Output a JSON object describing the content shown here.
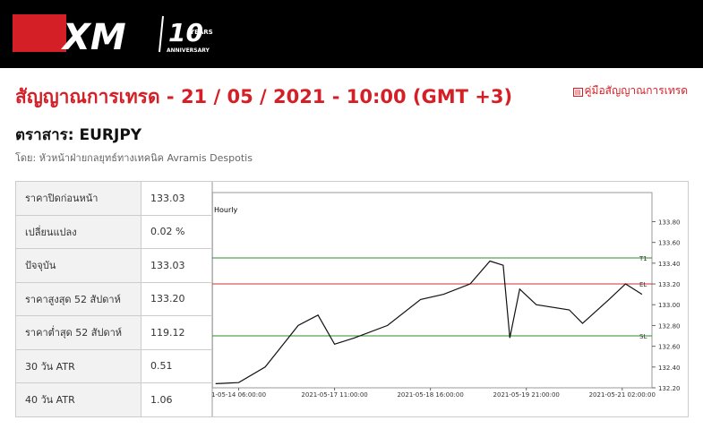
{
  "header": {
    "logo": "XM",
    "anniversary_number": "10",
    "anniversary_years": "YEARS",
    "anniversary_text": "ANNIVERSARY"
  },
  "title": "สัญญาณการเทรด - 21 / 05 / 2021 - 10:00 (GMT +3)",
  "guide_link": "คู่มือสัญญาณการเทรด",
  "instrument": "ตราสาร: EURJPY",
  "author": "โดย: หัวหน้าฝ่ายกลยุทธ์ทางเทคนิค Avramis Despotis",
  "table": {
    "rows": [
      [
        "ราคาปิดก่อนหน้า",
        "133.03"
      ],
      [
        "เปลี่ยนแปลง",
        "0.02 %"
      ],
      [
        "ปัจจุบัน",
        "133.03"
      ],
      [
        "ราคาสูงสุด 52 สัปดาห์",
        "133.20"
      ],
      [
        "ราคาต่ำสุด 52 สัปดาห์",
        "119.12"
      ],
      [
        "30 วัน ATR",
        "0.51"
      ],
      [
        "40 วัน ATR",
        "1.06"
      ]
    ]
  },
  "chart_data": {
    "type": "line",
    "title": "Hourly",
    "color": "#111111",
    "x": [
      -7,
      0,
      8,
      18,
      24,
      29,
      35,
      45,
      55,
      62,
      70,
      76,
      80,
      82,
      85,
      90,
      100,
      104,
      112,
      117,
      122
    ],
    "values": [
      132.24,
      132.25,
      132.4,
      132.8,
      132.9,
      132.62,
      132.68,
      132.8,
      133.05,
      133.1,
      133.2,
      133.42,
      133.38,
      132.68,
      133.15,
      133.0,
      132.95,
      132.82,
      133.05,
      133.2,
      133.1
    ],
    "xlim": [
      -8,
      125
    ],
    "xticks": [
      {
        "value": 0,
        "label": "1-05-14 06:00:00"
      },
      {
        "value": 29,
        "label": "2021-05-17 11:00:00"
      },
      {
        "value": 58,
        "label": "2021-05-18 16:00:00"
      },
      {
        "value": 87,
        "label": "2021-05-19 21:00:00"
      },
      {
        "value": 116,
        "label": "2021-05-21 02:00:00"
      }
    ],
    "ylim": [
      132.2,
      134.08
    ],
    "yticks": [
      {
        "value": 132.2,
        "label": "132.20"
      },
      {
        "value": 132.4,
        "label": "132.40"
      },
      {
        "value": 132.6,
        "label": "132.60"
      },
      {
        "value": 132.8,
        "label": "132.80"
      },
      {
        "value": 133.0,
        "label": "133.00"
      },
      {
        "value": 133.2,
        "label": "133.20"
      },
      {
        "value": 133.4,
        "label": "133.40"
      },
      {
        "value": 133.6,
        "label": "133.60"
      },
      {
        "value": 133.8,
        "label": "133.80"
      }
    ],
    "levels": [
      {
        "label": "T1",
        "value": 133.45,
        "color": "#2e8b2e"
      },
      {
        "label": "EL",
        "value": 133.2,
        "color": "#d03030"
      },
      {
        "label": "SL",
        "value": 132.7,
        "color": "#2e8b2e"
      }
    ]
  }
}
